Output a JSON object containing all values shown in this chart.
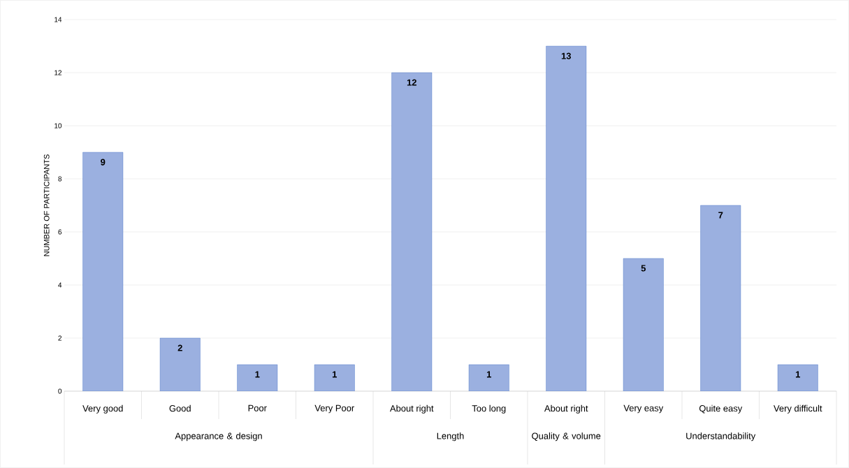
{
  "chart_data": {
    "type": "bar",
    "ylabel": "NUMBER OF PARTICIPANTS",
    "categories": [
      "Very good",
      "Good",
      "Poor",
      "Very Poor",
      "About right",
      "Too long",
      "About right",
      "Very easy",
      "Quite easy",
      "Very difficult"
    ],
    "values": [
      9,
      2,
      1,
      1,
      12,
      1,
      13,
      5,
      7,
      1
    ],
    "color": "#9bb0e0",
    "ylim": [
      0,
      14
    ],
    "yticks": [
      0,
      2,
      4,
      6,
      8,
      10,
      12,
      14
    ],
    "grid": "y",
    "data_labels": true,
    "annotations": [
      "Appearance & design",
      "Length",
      "Quality & volume",
      "Understandability"
    ]
  }
}
